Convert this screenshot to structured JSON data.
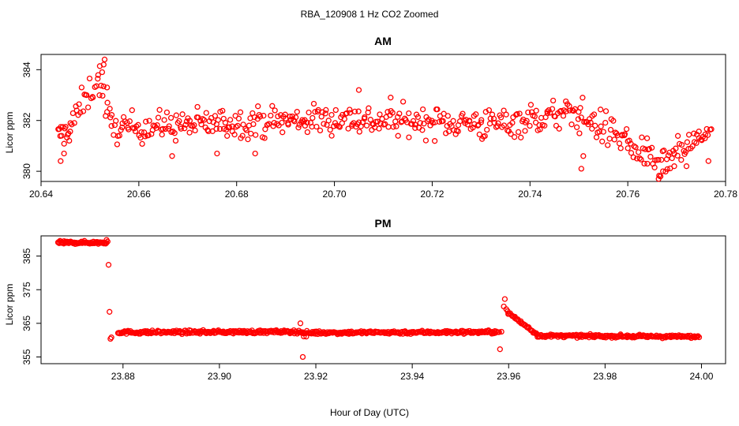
{
  "chart_data": {
    "type": "scatter",
    "title": "RBA_120908  1 Hz CO2 Zoomed",
    "xlabel": "Hour of Day (UTC)",
    "marker_color": "#ff0000",
    "marker": "open-circle",
    "panels": [
      {
        "id": "am",
        "title": "AM",
        "ylabel": "Licor ppm",
        "xlim": [
          20.64,
          20.78
        ],
        "ylim": [
          379.6,
          384.6
        ],
        "xticks": [
          "20.64",
          "20.66",
          "20.68",
          "20.70",
          "20.72",
          "20.74",
          "20.76",
          "20.78"
        ],
        "yticks": [
          "380",
          "382",
          "384"
        ],
        "segments": [
          {
            "x0": 20.6435,
            "x1": 20.646,
            "base_start": 381.4,
            "base_end": 381.6,
            "noise": 0.35,
            "n": 14
          },
          {
            "x0": 20.646,
            "x1": 20.652,
            "base_start": 381.8,
            "base_end": 383.8,
            "noise": 0.45,
            "n": 24
          },
          {
            "x0": 20.652,
            "x1": 20.6545,
            "base_start": 383.5,
            "base_end": 381.6,
            "noise": 0.45,
            "n": 10
          },
          {
            "x0": 20.6545,
            "x1": 20.678,
            "base_start": 381.7,
            "base_end": 381.9,
            "noise": 0.42,
            "n": 95
          },
          {
            "x0": 20.678,
            "x1": 20.705,
            "base_start": 381.9,
            "base_end": 382.1,
            "noise": 0.42,
            "n": 110
          },
          {
            "x0": 20.705,
            "x1": 20.73,
            "base_start": 382.0,
            "base_end": 381.9,
            "noise": 0.42,
            "n": 100
          },
          {
            "x0": 20.73,
            "x1": 20.75,
            "base_start": 381.8,
            "base_end": 382.3,
            "noise": 0.45,
            "n": 80
          },
          {
            "x0": 20.75,
            "x1": 20.76,
            "base_start": 382.2,
            "base_end": 381.2,
            "noise": 0.5,
            "n": 40
          },
          {
            "x0": 20.76,
            "x1": 20.768,
            "base_start": 381.0,
            "base_end": 380.1,
            "noise": 0.45,
            "n": 32
          },
          {
            "x0": 20.768,
            "x1": 20.777,
            "base_start": 380.4,
            "base_end": 381.6,
            "noise": 0.4,
            "n": 36
          }
        ],
        "extra_points": [
          [
            20.644,
            380.4
          ],
          [
            20.6447,
            380.7
          ],
          [
            20.653,
            384.4
          ],
          [
            20.6528,
            384.2
          ],
          [
            20.6525,
            383.9
          ],
          [
            20.6535,
            383.3
          ],
          [
            20.6668,
            380.6
          ],
          [
            20.676,
            380.7
          ],
          [
            20.6838,
            380.7
          ],
          [
            20.705,
            383.2
          ],
          [
            20.7115,
            382.9
          ],
          [
            20.7505,
            380.1
          ],
          [
            20.7509,
            380.6
          ],
          [
            20.764,
            380.3
          ],
          [
            20.7663,
            379.7
          ],
          [
            20.7667,
            379.8
          ],
          [
            20.7672,
            380.0
          ],
          [
            20.7695,
            380.2
          ],
          [
            20.772,
            380.2
          ],
          [
            20.7765,
            380.4
          ]
        ]
      },
      {
        "id": "pm",
        "title": "PM",
        "ylabel": "Licor ppm",
        "xlim": [
          23.863,
          24.005
        ],
        "ylim": [
          353.0,
          391.0
        ],
        "xticks": [
          "23.88",
          "23.90",
          "23.92",
          "23.94",
          "23.96",
          "23.98",
          "24.00"
        ],
        "yticks": [
          "355",
          "365",
          "375",
          "385"
        ],
        "segments": [
          {
            "x0": 23.8665,
            "x1": 23.8765,
            "base_start": 389.0,
            "base_end": 389.0,
            "noise": 0.3,
            "n": 70
          },
          {
            "x0": 23.879,
            "x1": 23.917,
            "base_start": 362.3,
            "base_end": 362.5,
            "noise": 0.35,
            "n": 220
          },
          {
            "x0": 23.917,
            "x1": 23.918,
            "base_start": 362.5,
            "base_end": 361.4,
            "noise": 0.4,
            "n": 6
          },
          {
            "x0": 23.918,
            "x1": 23.958,
            "base_start": 362.2,
            "base_end": 362.4,
            "noise": 0.35,
            "n": 230
          },
          {
            "x0": 23.96,
            "x1": 23.966,
            "base_start": 368.0,
            "base_end": 361.6,
            "noise": 0.3,
            "n": 35
          },
          {
            "x0": 23.966,
            "x1": 23.9995,
            "base_start": 361.3,
            "base_end": 361.0,
            "noise": 0.3,
            "n": 200
          }
        ],
        "extra_points": [
          [
            23.8766,
            389.8
          ],
          [
            23.8768,
            389.3
          ],
          [
            23.877,
            382.4
          ],
          [
            23.8772,
            368.4
          ],
          [
            23.8774,
            360.4
          ],
          [
            23.8776,
            360.8
          ],
          [
            23.9168,
            365.0
          ],
          [
            23.917,
            362.3
          ],
          [
            23.9173,
            355.0
          ],
          [
            23.9175,
            361.1
          ],
          [
            23.9582,
            357.3
          ],
          [
            23.9585,
            362.5
          ],
          [
            23.959,
            370.0
          ],
          [
            23.9592,
            372.2
          ],
          [
            23.9595,
            369.2
          ],
          [
            23.9598,
            368.6
          ]
        ]
      }
    ]
  }
}
